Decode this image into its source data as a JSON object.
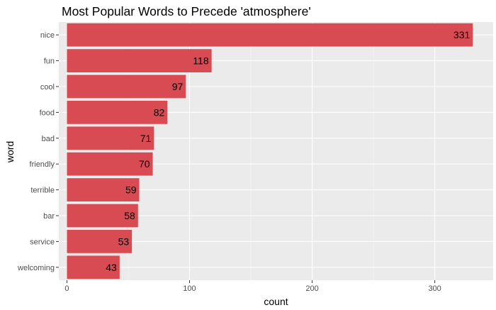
{
  "chart_data": {
    "type": "bar",
    "orientation": "horizontal",
    "title": "Most Popular Words to Precede 'atmosphere'",
    "xlabel": "count",
    "ylabel": "word",
    "categories": [
      "nice",
      "fun",
      "cool",
      "food",
      "bad",
      "friendly",
      "terrible",
      "bar",
      "service",
      "welcoming"
    ],
    "values": [
      331,
      118,
      97,
      82,
      71,
      70,
      59,
      58,
      53,
      43
    ],
    "x_ticks": [
      0,
      100,
      200,
      300
    ],
    "xlim": [
      -6.6,
      347.6
    ],
    "grid": true,
    "legend": "none",
    "colors": {
      "bar": "#d84b52",
      "panel": "#ebebeb",
      "grid_major": "#ffffff",
      "grid_minor": "#f5f5f5"
    }
  }
}
